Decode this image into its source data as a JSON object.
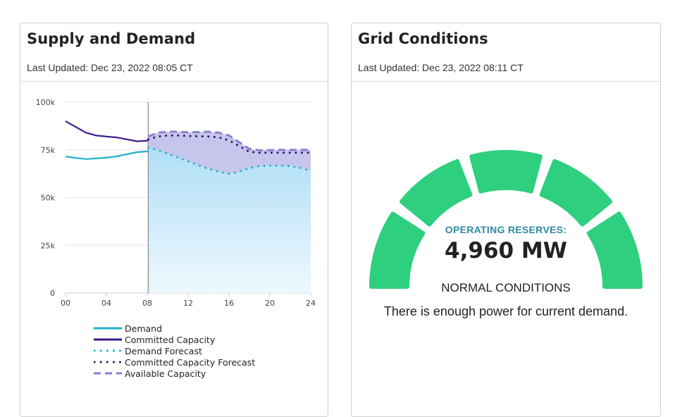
{
  "supply_demand": {
    "title": "Supply and Demand",
    "last_updated": "Last Updated: Dec 23, 2022 08:05 CT"
  },
  "grid_conditions": {
    "title": "Grid Conditions",
    "last_updated": "Last Updated: Dec 23, 2022 08:11 CT",
    "reserves_label": "OPERATING RESERVES:",
    "reserves_value": "4,960 MW",
    "status_title": "NORMAL CONDITIONS",
    "status_description": "There is enough power for current demand.",
    "gauge_segments": 5,
    "gauge_color": "#2ecf7e"
  },
  "chart_data": {
    "type": "line",
    "title": "",
    "xlabel": "",
    "ylabel": "",
    "xlim": [
      0,
      24
    ],
    "ylim": [
      0,
      100000
    ],
    "x_ticks": [
      "00",
      "04",
      "08",
      "12",
      "16",
      "20",
      "24"
    ],
    "y_ticks": [
      "100k",
      "75k",
      "50k",
      "25k",
      "0"
    ],
    "current_time_hour": 8.1,
    "series": [
      {
        "name": "Demand",
        "style": "solid",
        "color": "#1fb3c9",
        "x": [
          0,
          1,
          2,
          3,
          4,
          5,
          6,
          7,
          8.1
        ],
        "y": [
          71500,
          70800,
          70200,
          70500,
          70900,
          71600,
          72700,
          73800,
          74200
        ]
      },
      {
        "name": "Committed Capacity",
        "style": "solid",
        "color": "#3d1a8a",
        "x": [
          0,
          1,
          2,
          3,
          4,
          5,
          6,
          7,
          8.1
        ],
        "y": [
          90000,
          87000,
          84000,
          82500,
          82000,
          81500,
          80500,
          79500,
          79800
        ]
      },
      {
        "name": "Demand Forecast",
        "style": "dotted",
        "color": "#1fb3c9",
        "x": [
          8.1,
          9,
          10,
          11,
          12,
          13,
          14,
          15,
          16,
          17,
          18,
          19,
          20,
          21,
          22,
          23,
          24
        ],
        "y": [
          76000,
          75000,
          73000,
          71000,
          69000,
          67000,
          65000,
          63500,
          62500,
          63500,
          65500,
          66500,
          66800,
          66800,
          66500,
          65500,
          64000
        ]
      },
      {
        "name": "Committed Capacity Forecast",
        "style": "dotted",
        "color": "#2d1670",
        "x": [
          8.1,
          9,
          10,
          11,
          12,
          13,
          14,
          15,
          16,
          17,
          18,
          19,
          20,
          21,
          22,
          23,
          24
        ],
        "y": [
          80500,
          82000,
          82500,
          82500,
          82300,
          82100,
          82000,
          81500,
          80000,
          77000,
          74000,
          73500,
          73500,
          73500,
          73500,
          73500,
          73500
        ]
      },
      {
        "name": "Available Capacity",
        "style": "dashed",
        "color": "#8a7fd0",
        "x": [
          8.1,
          9,
          10,
          11,
          12,
          13,
          14,
          15,
          16,
          17,
          18,
          19,
          20,
          21,
          22,
          23,
          24
        ],
        "y": [
          82000,
          84000,
          84500,
          84500,
          84200,
          84300,
          84500,
          84000,
          82500,
          79000,
          75500,
          74800,
          74800,
          75000,
          75000,
          75000,
          75000
        ]
      }
    ],
    "legend_position": "bottom"
  }
}
